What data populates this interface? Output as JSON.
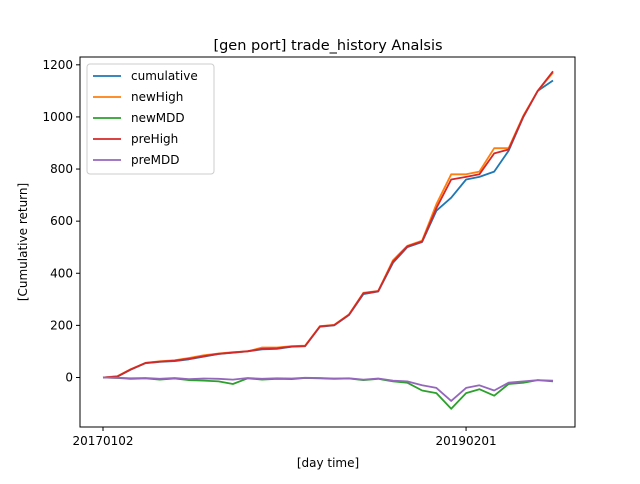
{
  "chart_data": {
    "type": "line",
    "title": "[gen port] trade_history Analsis",
    "xlabel": "[day time]",
    "ylabel": "[Cumulative return]",
    "x_range": [
      "20170102",
      "20190802"
    ],
    "x_ticks": [
      "20170102",
      "20190201"
    ],
    "ylim": [
      -190,
      1230
    ],
    "y_ticks": [
      0,
      200,
      400,
      600,
      800,
      1000,
      1200
    ],
    "grid": false,
    "legend_position": "top-left",
    "series": [
      {
        "name": "cumulative",
        "color": "#1f77b4",
        "x": [
          "20170102",
          "20170201",
          "20170301",
          "20170401",
          "20170501",
          "20170601",
          "20170701",
          "20170801",
          "20170901",
          "20171001",
          "20171101",
          "20171201",
          "20180101",
          "20180201",
          "20180301",
          "20180401",
          "20180501",
          "20180601",
          "20180701",
          "20180801",
          "20180901",
          "20181001",
          "20181101",
          "20181201",
          "20190101",
          "20190201",
          "20190301",
          "20190401",
          "20190501",
          "20190601",
          "20190701",
          "20190802"
        ],
        "values": [
          0,
          3,
          30,
          55,
          60,
          63,
          70,
          80,
          90,
          95,
          100,
          108,
          110,
          118,
          120,
          195,
          200,
          240,
          320,
          330,
          440,
          500,
          520,
          640,
          690,
          760,
          770,
          790,
          870,
          1000,
          1100,
          1140
        ]
      },
      {
        "name": "newHigh",
        "color": "#ff7f0e",
        "x": [
          "20170102",
          "20170201",
          "20170301",
          "20170401",
          "20170501",
          "20170601",
          "20170701",
          "20170801",
          "20170901",
          "20171001",
          "20171101",
          "20171201",
          "20180101",
          "20180201",
          "20180301",
          "20180401",
          "20180501",
          "20180601",
          "20180701",
          "20180801",
          "20180901",
          "20181001",
          "20181101",
          "20181201",
          "20190101",
          "20190201",
          "20190301",
          "20190401",
          "20190501",
          "20190601",
          "20190701",
          "20190802"
        ],
        "values": [
          0,
          5,
          32,
          56,
          62,
          66,
          75,
          85,
          92,
          97,
          100,
          115,
          115,
          120,
          122,
          197,
          202,
          242,
          325,
          332,
          450,
          505,
          525,
          665,
          780,
          780,
          790,
          880,
          880,
          1005,
          1100,
          1170
        ]
      },
      {
        "name": "newMDD",
        "color": "#2ca02c",
        "x": [
          "20170102",
          "20170201",
          "20170301",
          "20170401",
          "20170501",
          "20170601",
          "20170701",
          "20170801",
          "20170901",
          "20171001",
          "20171101",
          "20171201",
          "20180101",
          "20180201",
          "20180301",
          "20180401",
          "20180501",
          "20180601",
          "20180701",
          "20180801",
          "20180901",
          "20181001",
          "20181101",
          "20181201",
          "20190101",
          "20190201",
          "20190301",
          "20190401",
          "20190501",
          "20190601",
          "20190701",
          "20190802"
        ],
        "values": [
          0,
          -2,
          -5,
          -3,
          -8,
          -4,
          -10,
          -12,
          -15,
          -25,
          -3,
          -8,
          -5,
          -6,
          -2,
          -3,
          -5,
          -4,
          -10,
          -5,
          -15,
          -20,
          -50,
          -60,
          -120,
          -60,
          -45,
          -70,
          -25,
          -20,
          -10,
          -15
        ]
      },
      {
        "name": "preHigh",
        "color": "#d62728",
        "x": [
          "20170102",
          "20170201",
          "20170301",
          "20170401",
          "20170501",
          "20170601",
          "20170701",
          "20170801",
          "20170901",
          "20171001",
          "20171101",
          "20171201",
          "20180101",
          "20180201",
          "20180301",
          "20180401",
          "20180501",
          "20180601",
          "20180701",
          "20180801",
          "20180901",
          "20181001",
          "20181101",
          "20181201",
          "20190101",
          "20190201",
          "20190301",
          "20190401",
          "20190501",
          "20190601",
          "20190701",
          "20190802"
        ],
        "values": [
          0,
          4,
          31,
          56,
          61,
          65,
          72,
          82,
          91,
          96,
          101,
          110,
          112,
          119,
          121,
          196,
          201,
          241,
          323,
          331,
          445,
          503,
          522,
          650,
          760,
          770,
          780,
          860,
          875,
          1002,
          1100,
          1175
        ]
      },
      {
        "name": "preMDD",
        "color": "#9467bd",
        "x": [
          "20170102",
          "20170201",
          "20170301",
          "20170401",
          "20170501",
          "20170601",
          "20170701",
          "20170801",
          "20170901",
          "20171001",
          "20171101",
          "20171201",
          "20180101",
          "20180201",
          "20180301",
          "20180401",
          "20180501",
          "20180601",
          "20180701",
          "20180801",
          "20180901",
          "20181001",
          "20181101",
          "20181201",
          "20190101",
          "20190201",
          "20190301",
          "20190401",
          "20190501",
          "20190601",
          "20190701",
          "20190802"
        ],
        "values": [
          0,
          -1,
          -3,
          -2,
          -5,
          -2,
          -6,
          -4,
          -5,
          -8,
          -2,
          -5,
          -3,
          -4,
          -1,
          -2,
          -4,
          -3,
          -8,
          -4,
          -12,
          -15,
          -30,
          -40,
          -90,
          -40,
          -30,
          -50,
          -20,
          -15,
          -10,
          -12
        ]
      }
    ]
  }
}
